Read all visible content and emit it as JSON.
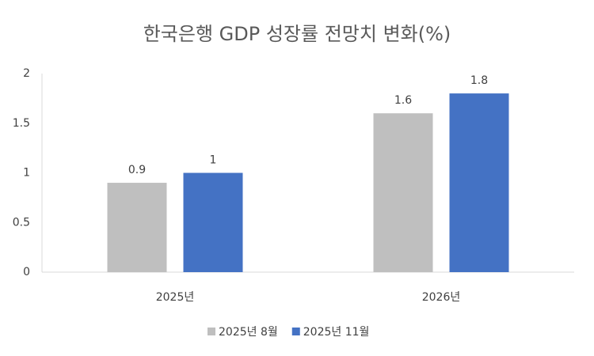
{
  "chart_data": {
    "type": "bar",
    "title": "한국은행 GDP 성장률 전망치 변화(%)",
    "categories": [
      "2025년",
      "2026년"
    ],
    "series": [
      {
        "name": "2025년 8월",
        "color": "#bfbfbf",
        "values": [
          0.9,
          1.6
        ]
      },
      {
        "name": "2025년 11월",
        "color": "#4472c4",
        "values": [
          1,
          1.8
        ]
      }
    ],
    "ylim": [
      0,
      2
    ],
    "yticks": [
      0,
      0.5,
      1,
      1.5,
      2
    ],
    "grid": false,
    "legend": "bottom"
  }
}
